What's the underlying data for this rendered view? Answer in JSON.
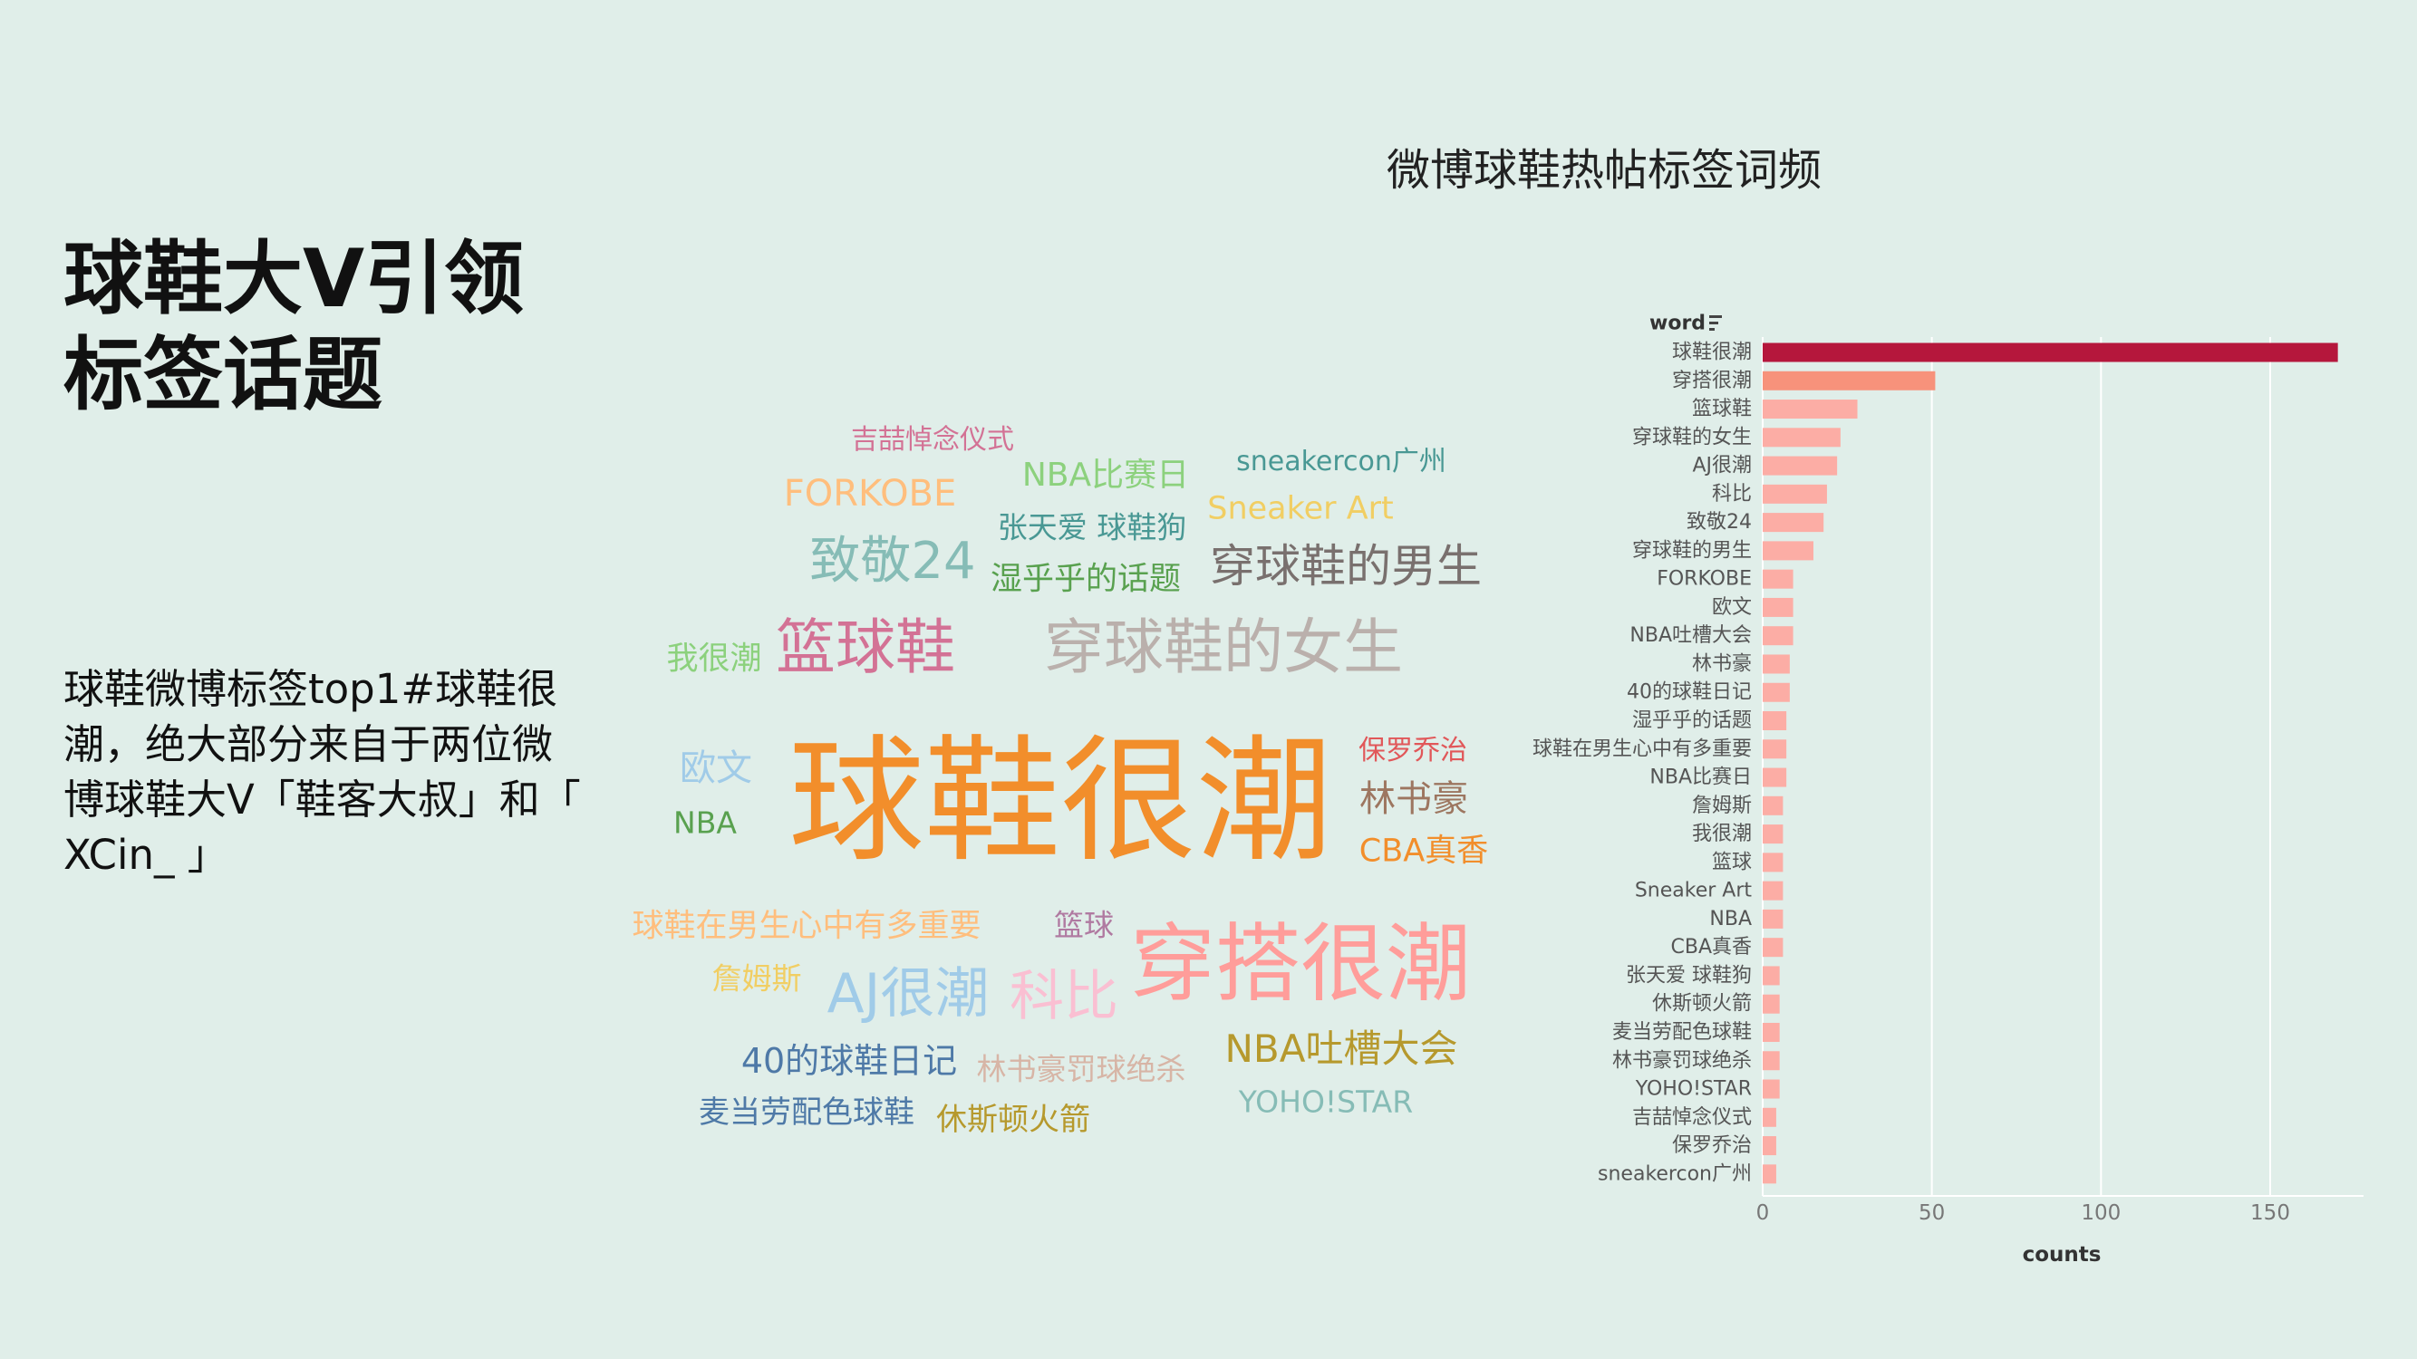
{
  "headline": {
    "line1": "球鞋大V引领",
    "line2": "标签话题"
  },
  "body_text": "球鞋微博标签top1#球鞋很潮，绝大部分来自于两位微博球鞋大V「鞋客大叔」和「 XCin_ 」",
  "wordcloud": {
    "words": [
      {
        "text": "球鞋很潮",
        "color": "#f28e2b"
      },
      {
        "text": "穿搭很潮",
        "color": "#ff9d9a"
      },
      {
        "text": "穿球鞋的女生",
        "color": "#bab0ac"
      },
      {
        "text": "篮球鞋",
        "color": "#d37295"
      },
      {
        "text": "穿球鞋的男生",
        "color": "#79706e"
      },
      {
        "text": "致敬24",
        "color": "#86bcb6"
      },
      {
        "text": "AJ很潮",
        "color": "#a0cbe8"
      },
      {
        "text": "科比",
        "color": "#fabfd2"
      },
      {
        "text": "FORKOBE",
        "color": "#ffbe7d"
      },
      {
        "text": "NBA吐槽大会",
        "color": "#b6992d"
      },
      {
        "text": "林书豪",
        "color": "#9d7660"
      },
      {
        "text": "NBA比赛日",
        "color": "#8cd17d"
      },
      {
        "text": "Sneaker Art",
        "color": "#f1ce63"
      },
      {
        "text": "欧文",
        "color": "#a0cbe8"
      },
      {
        "text": "40的球鞋日记",
        "color": "#4e79a7"
      },
      {
        "text": "湿乎乎的话题",
        "color": "#59a14f"
      },
      {
        "text": "球鞋在男生心中有多重要",
        "color": "#ffbe7d"
      },
      {
        "text": "张天爱 球鞋狗",
        "color": "#499894"
      },
      {
        "text": "CBA真香",
        "color": "#f28e2b"
      },
      {
        "text": "林书豪罚球绝杀",
        "color": "#d7b5a6"
      },
      {
        "text": "麦当劳配色球鞋",
        "color": "#4e79a7"
      },
      {
        "text": "休斯顿火箭",
        "color": "#b6992d"
      },
      {
        "text": "YOHO!STAR",
        "color": "#86bcb6"
      },
      {
        "text": "NBA",
        "color": "#59a14f"
      },
      {
        "text": "我很潮",
        "color": "#8cd17d"
      },
      {
        "text": "詹姆斯",
        "color": "#f1ce63"
      },
      {
        "text": "吉喆悼念仪式",
        "color": "#d37295"
      },
      {
        "text": "保罗乔治",
        "color": "#e15759"
      },
      {
        "text": "sneakercon广州",
        "color": "#499894"
      },
      {
        "text": "篮球",
        "color": "#b07aa1"
      }
    ]
  },
  "chart_data": {
    "type": "bar",
    "orientation": "horizontal",
    "title": "微博球鞋热帖标签词频",
    "ylabel": "word",
    "xlabel": "counts",
    "xticks": [
      0,
      50,
      100,
      150
    ],
    "xlim": [
      0,
      175
    ],
    "grid": true,
    "categories": [
      "球鞋很潮",
      "穿搭很潮",
      "篮球鞋",
      "穿球鞋的女生",
      "AJ很潮",
      "科比",
      "致敬24",
      "穿球鞋的男生",
      "FORKOBE",
      "欧文",
      "NBA吐槽大会",
      "林书豪",
      "40的球鞋日记",
      "湿乎乎的话题",
      "球鞋在男生心中有多重要",
      "NBA比赛日",
      "詹姆斯",
      "我很潮",
      "篮球",
      "Sneaker Art",
      "NBA",
      "CBA真香",
      "张天爱 球鞋狗",
      "休斯顿火箭",
      "麦当劳配色球鞋",
      "林书豪罚球绝杀",
      "YOHO!STAR",
      "吉喆悼念仪式",
      "保罗乔治",
      "sneakercon广州"
    ],
    "values": [
      170,
      51,
      28,
      23,
      22,
      19,
      18,
      15,
      9,
      9,
      9,
      8,
      8,
      7,
      7,
      7,
      6,
      6,
      6,
      6,
      6,
      6,
      5,
      5,
      5,
      5,
      5,
      4,
      4,
      4
    ],
    "colors": {
      "top": "#b5173c",
      "second": "#f7927b",
      "rest": "#fcada5",
      "gridline": "#ffffff",
      "text": "#555555"
    }
  }
}
